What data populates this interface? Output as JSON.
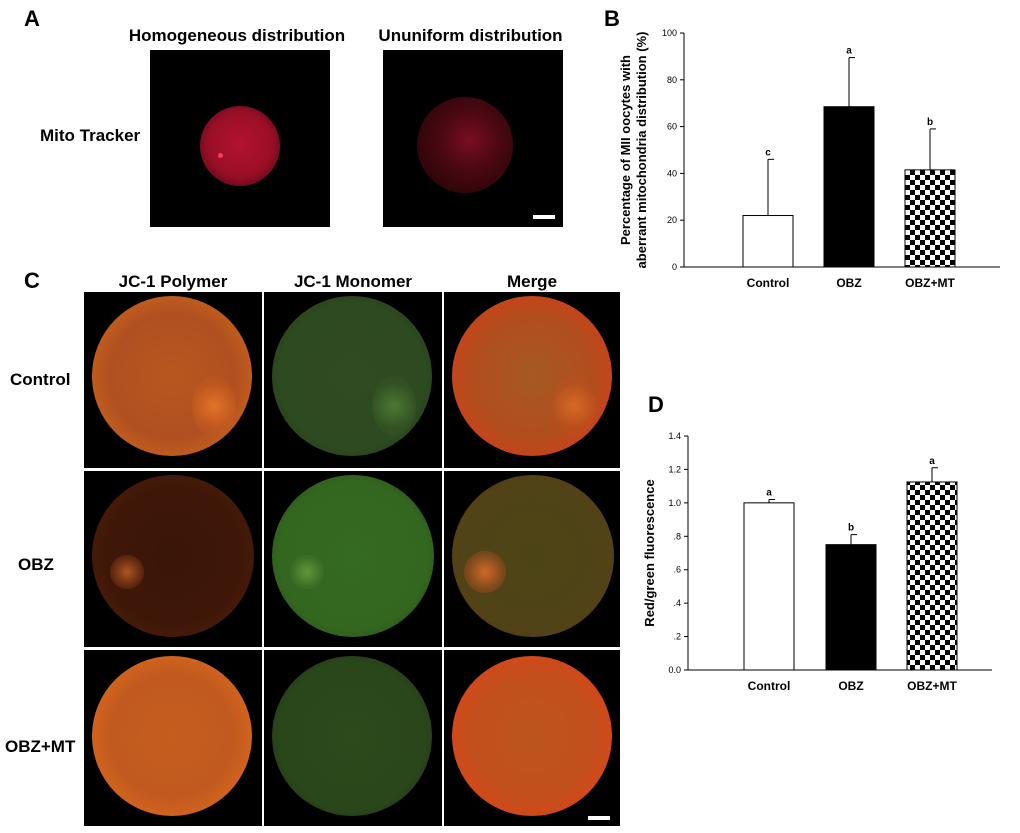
{
  "figure": {
    "panel_a": {
      "letter": "A",
      "col_titles": [
        "Homogeneous distribution",
        "Ununiform distribution"
      ],
      "row_label": "Mito Tracker"
    },
    "panel_b": {
      "letter": "B"
    },
    "panel_c": {
      "letter": "C",
      "col_titles": [
        "JC-1 Polymer",
        "JC-1 Monomer",
        "Merge"
      ],
      "row_labels": [
        "Control",
        "OBZ",
        "OBZ+MT"
      ]
    },
    "panel_d": {
      "letter": "D"
    }
  },
  "colors": {
    "mito_red": "#b0102a",
    "jc1_polymer": "#d2621c",
    "jc1_monomer": "#3f7f25",
    "merge": "#c84a18"
  },
  "chart_data": [
    {
      "type": "bar",
      "panel": "B",
      "categories": [
        "Control",
        "OBZ",
        "OBZ+MT"
      ],
      "values": [
        22,
        68.5,
        41.5
      ],
      "errors": [
        24,
        21,
        17.5
      ],
      "annotations": [
        "c",
        "a",
        "b"
      ],
      "fills": [
        "white",
        "black",
        "checkerboard"
      ],
      "ylabel": "Percentage of MII oocytes with aberrant mitochondria distribution (%)",
      "ylabel_lines": [
        "Percentage of MII oocytes with",
        "aberrant mitochondria distribution (%)"
      ],
      "ylim": [
        0,
        100
      ],
      "yticks": [
        0,
        20,
        40,
        60,
        80,
        100
      ],
      "ytick_labels": [
        "0",
        "20",
        "40",
        "60",
        "80",
        "100"
      ]
    },
    {
      "type": "bar",
      "panel": "D",
      "categories": [
        "Control",
        "OBZ",
        "OBZ+MT"
      ],
      "values": [
        1.0,
        0.75,
        1.125
      ],
      "errors": [
        0.02,
        0.06,
        0.085
      ],
      "annotations": [
        "a",
        "b",
        "a"
      ],
      "fills": [
        "white",
        "black",
        "checkerboard"
      ],
      "ylabel": "Red/green fluorescence",
      "ylim": [
        0,
        1.4
      ],
      "yticks": [
        0,
        0.2,
        0.4,
        0.6,
        0.8,
        1.0,
        1.2,
        1.4
      ],
      "ytick_labels": [
        "0.0",
        ".2",
        ".4",
        ".6",
        ".8",
        "1.0",
        "1.2",
        "1.4"
      ]
    }
  ]
}
